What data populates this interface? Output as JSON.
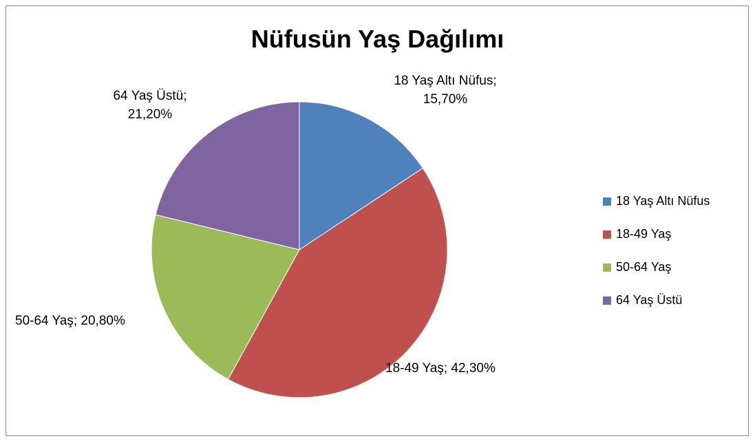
{
  "chart_data": {
    "type": "pie",
    "title": "Nüfusün Yaş Dağılımı",
    "categories": [
      "18 Yaş Altı Nüfus",
      "18-49 Yaş",
      "50-64 Yaş",
      "64 Yaş Üstü"
    ],
    "values": [
      15.7,
      42.3,
      20.8,
      21.2
    ],
    "value_labels": [
      "18 Yaş Altı Nüfus; 15,70%",
      "18-49 Yaş; 42,30%",
      "50-64 Yaş; 20,80%",
      "64 Yaş Üstü; 21,20%"
    ],
    "colors": [
      "#4f81bd",
      "#c0504d",
      "#9bbb59",
      "#8064a2"
    ],
    "legend": "right"
  }
}
